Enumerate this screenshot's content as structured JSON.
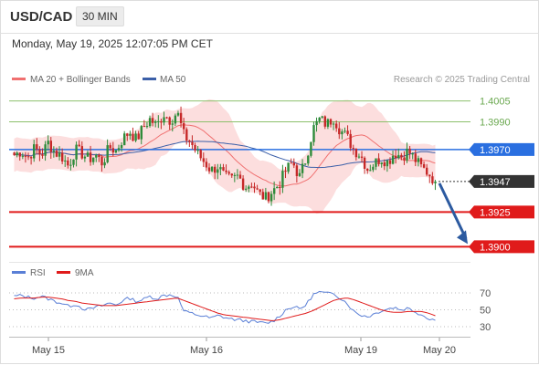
{
  "header": {
    "symbol": "USD/CAD",
    "timeframe": "30 MIN",
    "datetime": "Monday, May 19, 2025 12:07:05 PM CET"
  },
  "legend": {
    "bb_label": "MA 20 + Bollinger Bands",
    "ma50_label": "MA 50",
    "rsi_label": "RSI",
    "rsi_ma_label": "9MA",
    "credit": "Research © 2025 Trading Central"
  },
  "colors": {
    "candle_up": "#2e8b3a",
    "candle_down": "#c62828",
    "bollinger_fill": "#fbd3d3",
    "ma20": "#f07070",
    "ma50": "#3b5fa8",
    "level_blue": "#2a6fe0",
    "level_red": "#e01b1b",
    "level_green": "#8cc06b",
    "current_price": "#333333",
    "arrow": "#2c5aa0",
    "rsi": "#5a7fd6",
    "rsi_ma": "#e01b1b"
  },
  "chart_data": [
    {
      "type": "candlestick",
      "x_tick_labels": [
        "May 15",
        "May 16",
        "May 19",
        "May 20"
      ],
      "y_range": [
        1.3895,
        1.4012
      ],
      "series": [
        {
          "name": "MA 20 + Bollinger Bands"
        },
        {
          "name": "MA 50"
        }
      ],
      "levels": [
        {
          "value": 1.4005,
          "label": "1.4005",
          "color": "green"
        },
        {
          "value": 1.399,
          "label": "1.3990",
          "color": "green"
        },
        {
          "value": 1.397,
          "label": "1.3970",
          "color": "blue"
        },
        {
          "value": 1.3947,
          "label": "1.3947",
          "color": "current"
        },
        {
          "value": 1.3925,
          "label": "1.3925",
          "color": "red"
        },
        {
          "value": 1.39,
          "label": "1.3900",
          "color": "red"
        }
      ],
      "price_path": [
        1.3966,
        1.3969,
        1.3964,
        1.3971,
        1.3966,
        1.3975,
        1.3968,
        1.3965,
        1.3958,
        1.397,
        1.3967,
        1.3963,
        1.3966,
        1.396,
        1.3972,
        1.3969,
        1.3978,
        1.3983,
        1.3977,
        1.3986,
        1.3992,
        1.3987,
        1.3996,
        1.3991,
        1.3997,
        1.398,
        1.3975,
        1.3967,
        1.3961,
        1.3955,
        1.3958,
        1.395,
        1.3948,
        1.3951,
        1.3943,
        1.3946,
        1.3938,
        1.3935,
        1.394,
        1.3945,
        1.3955,
        1.3961,
        1.395,
        1.3964,
        1.3985,
        1.3992,
        1.3988,
        1.3993,
        1.3984,
        1.3979,
        1.397,
        1.3966,
        1.3956,
        1.396,
        1.3964,
        1.3961,
        1.3968,
        1.3965,
        1.3969,
        1.3963,
        1.3957,
        1.3953,
        1.3947
      ],
      "projection": {
        "from": 1.3947,
        "to": 1.39
      }
    },
    {
      "type": "line",
      "y_ticks": [
        70,
        50,
        30
      ],
      "series": [
        {
          "name": "RSI",
          "values": [
            66,
            67,
            65,
            64,
            66,
            63,
            60,
            58,
            54,
            57,
            52,
            50,
            53,
            55,
            58,
            56,
            61,
            64,
            60,
            62,
            66,
            63,
            67,
            68,
            66,
            48,
            46,
            44,
            42,
            40,
            43,
            41,
            39,
            38,
            37,
            36,
            35,
            34,
            36,
            42,
            50,
            54,
            51,
            56,
            68,
            71,
            69,
            70,
            64,
            58,
            48,
            44,
            42,
            45,
            49,
            51,
            53,
            50,
            52,
            48,
            44,
            40,
            38
          ]
        },
        {
          "name": "9MA",
          "values": [
            63,
            64,
            64,
            64,
            65,
            65,
            64,
            63,
            61,
            60,
            58,
            57,
            56,
            55,
            55,
            55,
            56,
            57,
            58,
            59,
            60,
            61,
            62,
            63,
            64,
            61,
            58,
            55,
            52,
            49,
            46,
            44,
            43,
            42,
            41,
            40,
            39,
            38,
            37,
            38,
            40,
            42,
            44,
            46,
            49,
            53,
            57,
            61,
            63,
            64,
            62,
            59,
            56,
            53,
            50,
            48,
            47,
            47,
            48,
            48,
            48,
            46,
            43
          ]
        }
      ]
    }
  ]
}
